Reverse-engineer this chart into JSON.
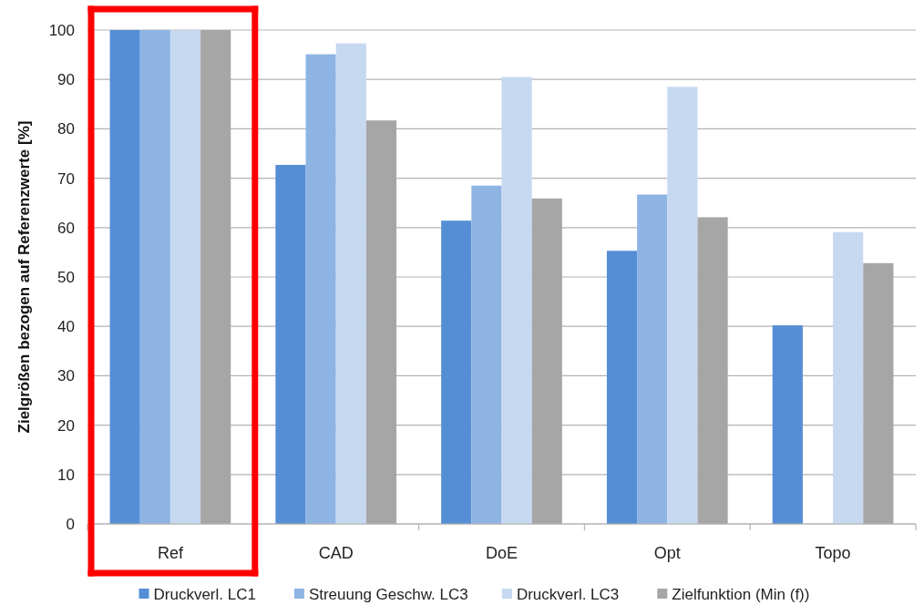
{
  "chart_data": {
    "type": "bar",
    "ylabel": "Zielgrößen bezogen auf Referenzwerte [%]",
    "categories": [
      "Ref",
      "CAD",
      "DoE",
      "Opt",
      "Topo"
    ],
    "series": [
      {
        "name": "Druckverl. LC1",
        "color": "#558ed5",
        "values": [
          100,
          72.7,
          61.4,
          55.3,
          40.2
        ]
      },
      {
        "name": "Streuung Geschw. LC3",
        "color": "#8eb4e3",
        "values": [
          100,
          95.1,
          68.5,
          66.7,
          null
        ]
      },
      {
        "name": "Druckverl. LC3",
        "color": "#c6d9f1",
        "values": [
          100,
          97.3,
          90.5,
          88.5,
          59.1
        ]
      },
      {
        "name": "Zielfunktion (Min (f))",
        "color": "#a6a6a6",
        "values": [
          100,
          81.7,
          65.9,
          62.1,
          52.8
        ]
      }
    ],
    "ylim": [
      0,
      100
    ],
    "yticks": [
      0,
      10,
      20,
      30,
      40,
      50,
      60,
      70,
      80,
      90,
      100
    ],
    "grid": "y",
    "legend": "bottom"
  }
}
